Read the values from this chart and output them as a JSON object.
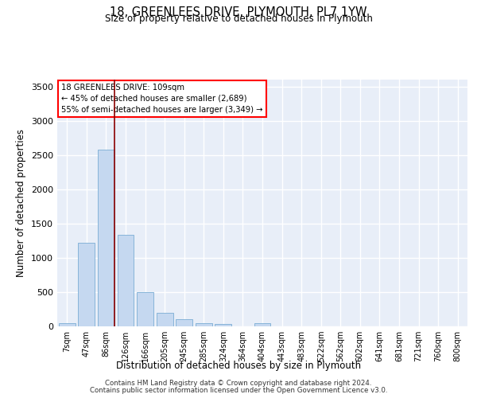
{
  "title": "18, GREENLEES DRIVE, PLYMOUTH, PL7 1YW",
  "subtitle": "Size of property relative to detached houses in Plymouth",
  "xlabel": "Distribution of detached houses by size in Plymouth",
  "ylabel": "Number of detached properties",
  "bar_color": "#c5d8f0",
  "bar_edge_color": "#7aadd4",
  "background_color": "#e8eef8",
  "grid_color": "#ffffff",
  "categories": [
    "7sqm",
    "47sqm",
    "86sqm",
    "126sqm",
    "166sqm",
    "205sqm",
    "245sqm",
    "285sqm",
    "324sqm",
    "364sqm",
    "404sqm",
    "443sqm",
    "483sqm",
    "522sqm",
    "562sqm",
    "602sqm",
    "641sqm",
    "681sqm",
    "721sqm",
    "760sqm",
    "800sqm"
  ],
  "values": [
    50,
    1220,
    2580,
    1340,
    500,
    195,
    105,
    50,
    40,
    0,
    45,
    0,
    0,
    0,
    0,
    0,
    0,
    0,
    0,
    0,
    0
  ],
  "ylim": [
    0,
    3600
  ],
  "yticks": [
    0,
    500,
    1000,
    1500,
    2000,
    2500,
    3000,
    3500
  ],
  "vline_x": 2.45,
  "annotation_title": "18 GREENLEES DRIVE: 109sqm",
  "annotation_line1": "← 45% of detached houses are smaller (2,689)",
  "annotation_line2": "55% of semi-detached houses are larger (3,349) →",
  "footer_line1": "Contains HM Land Registry data © Crown copyright and database right 2024.",
  "footer_line2": "Contains public sector information licensed under the Open Government Licence v3.0."
}
